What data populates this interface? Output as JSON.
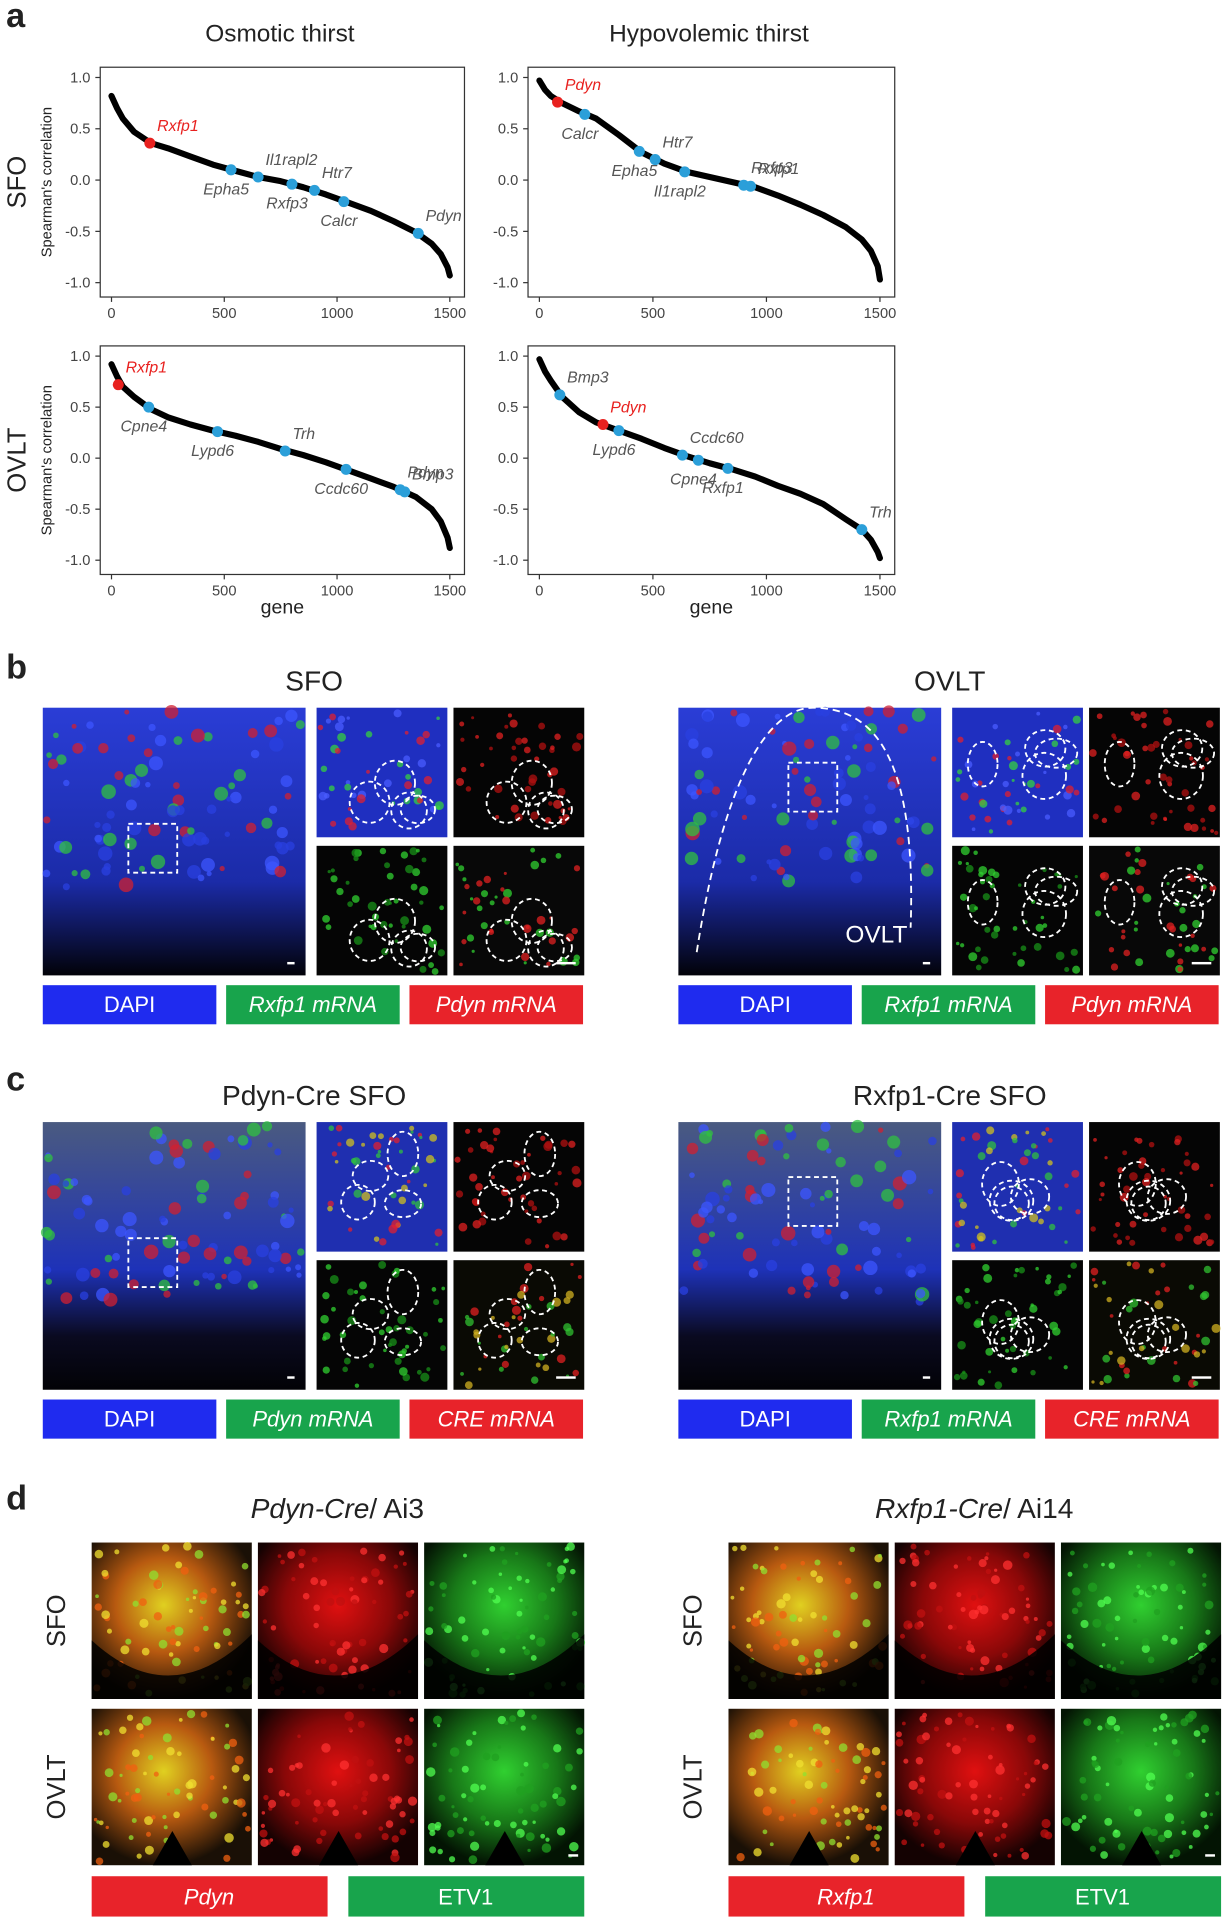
{
  "panel_labels": [
    "a",
    "b",
    "c",
    "d"
  ],
  "chart_data": [
    {
      "type": "line",
      "title": "Osmotic thirst",
      "row_label": "SFO",
      "ylabel": "Spearman's correlation",
      "x": [
        0,
        25,
        50,
        100,
        175,
        250,
        350,
        450,
        550,
        650,
        750,
        850,
        950,
        1050,
        1150,
        1250,
        1350,
        1420,
        1460,
        1490,
        1500
      ],
      "values": [
        0.82,
        0.7,
        0.6,
        0.47,
        0.36,
        0.31,
        0.23,
        0.15,
        0.09,
        0.03,
        -0.01,
        -0.07,
        -0.14,
        -0.22,
        -0.3,
        -0.4,
        -0.51,
        -0.62,
        -0.72,
        -0.85,
        -0.93
      ],
      "color": "#000000",
      "highlights": [
        {
          "label": "Rxfp1",
          "x": 170,
          "y": 0.36,
          "color": "#e8211f"
        },
        {
          "label": "Epha5",
          "x": 530,
          "y": 0.1,
          "color": "#2b9fd9"
        },
        {
          "label": "Il1rapl2",
          "x": 650,
          "y": 0.03,
          "color": "#2b9fd9"
        },
        {
          "label": "Rxfp3",
          "x": 800,
          "y": -0.04,
          "color": "#2b9fd9"
        },
        {
          "label": "Htr7",
          "x": 900,
          "y": -0.1,
          "color": "#2b9fd9"
        },
        {
          "label": "Calcr",
          "x": 1030,
          "y": -0.21,
          "color": "#2b9fd9"
        },
        {
          "label": "Pdyn",
          "x": 1360,
          "y": -0.52,
          "color": "#2b9fd9"
        }
      ],
      "xlim": [
        -50,
        1565
      ],
      "ylim": [
        -1.14,
        1.1
      ],
      "xticks": [
        0,
        500,
        1000,
        1500
      ],
      "yticks": [
        {
          "value": 1,
          "label": "1.0"
        },
        0.5,
        {
          "value": 0,
          "label": "0.0"
        },
        -0.5,
        {
          "value": -1,
          "label": "-1.0"
        }
      ]
    },
    {
      "type": "line",
      "title": "Hypovolemic thirst",
      "x": [
        0,
        25,
        50,
        100,
        175,
        250,
        350,
        450,
        550,
        650,
        750,
        850,
        950,
        1050,
        1150,
        1250,
        1350,
        1420,
        1460,
        1490,
        1500
      ],
      "values": [
        0.97,
        0.88,
        0.82,
        0.75,
        0.67,
        0.6,
        0.44,
        0.27,
        0.16,
        0.08,
        0.03,
        -0.02,
        -0.07,
        -0.15,
        -0.24,
        -0.34,
        -0.46,
        -0.58,
        -0.69,
        -0.84,
        -0.97
      ],
      "color": "#000000",
      "highlights": [
        {
          "label": "Pdyn",
          "x": 80,
          "y": 0.76,
          "color": "#e8211f"
        },
        {
          "label": "Calcr",
          "x": 200,
          "y": 0.64,
          "color": "#2b9fd9"
        },
        {
          "label": "Htr7",
          "x": 510,
          "y": 0.2,
          "color": "#2b9fd9"
        },
        {
          "label": "Epha5",
          "x": 440,
          "y": 0.28,
          "color": "#2b9fd9"
        },
        {
          "label": "Rxfp3",
          "x": 900,
          "y": -0.05,
          "color": "#2b9fd9"
        },
        {
          "label": "Il1rapl2",
          "x": 640,
          "y": 0.08,
          "color": "#2b9fd9"
        },
        {
          "label": "Rxfp1",
          "x": 930,
          "y": -0.06,
          "color": "#2b9fd9"
        }
      ],
      "xlim": [
        -50,
        1565
      ],
      "ylim": [
        -1.14,
        1.1
      ],
      "xticks": [
        0,
        500,
        1000,
        1500
      ],
      "yticks": [
        {
          "value": 1,
          "label": "1.0"
        },
        0.5,
        {
          "value": 0,
          "label": "0.0"
        },
        -0.5,
        {
          "value": -1,
          "label": "-1.0"
        }
      ]
    },
    {
      "type": "line",
      "row_label": "OVLT",
      "ylabel": "Spearman's correlation",
      "xlabel": "gene",
      "x": [
        0,
        25,
        50,
        100,
        175,
        250,
        350,
        450,
        550,
        650,
        750,
        850,
        950,
        1050,
        1150,
        1250,
        1350,
        1420,
        1460,
        1490,
        1500
      ],
      "values": [
        0.92,
        0.8,
        0.7,
        0.6,
        0.48,
        0.4,
        0.33,
        0.27,
        0.22,
        0.16,
        0.09,
        0.03,
        -0.04,
        -0.12,
        -0.2,
        -0.28,
        -0.38,
        -0.5,
        -0.62,
        -0.78,
        -0.88
      ],
      "color": "#000000",
      "highlights": [
        {
          "label": "Rxfp1",
          "x": 30,
          "y": 0.72,
          "color": "#e8211f"
        },
        {
          "label": "Cpne4",
          "x": 165,
          "y": 0.5,
          "color": "#2b9fd9"
        },
        {
          "label": "Trh",
          "x": 770,
          "y": 0.07,
          "color": "#2b9fd9"
        },
        {
          "label": "Lypd6",
          "x": 470,
          "y": 0.26,
          "color": "#2b9fd9"
        },
        {
          "label": "Pdyn",
          "x": 1280,
          "y": -0.31,
          "color": "#2b9fd9"
        },
        {
          "label": "Ccdc60",
          "x": 1040,
          "y": -0.11,
          "color": "#2b9fd9"
        },
        {
          "label": "Bmp3",
          "x": 1300,
          "y": -0.33,
          "color": "#2b9fd9"
        }
      ],
      "xlim": [
        -50,
        1565
      ],
      "ylim": [
        -1.14,
        1.1
      ],
      "xticks": [
        0,
        500,
        1000,
        1500
      ],
      "yticks": [
        {
          "value": 1,
          "label": "1.0"
        },
        0.5,
        {
          "value": 0,
          "label": "0.0"
        },
        -0.5,
        {
          "value": -1,
          "label": "-1.0"
        }
      ]
    },
    {
      "type": "line",
      "xlabel": "gene",
      "x": [
        0,
        25,
        50,
        100,
        175,
        250,
        350,
        450,
        550,
        650,
        750,
        850,
        950,
        1050,
        1150,
        1250,
        1350,
        1420,
        1460,
        1490,
        1500
      ],
      "values": [
        0.97,
        0.85,
        0.76,
        0.6,
        0.45,
        0.35,
        0.27,
        0.19,
        0.1,
        0.02,
        -0.05,
        -0.11,
        -0.18,
        -0.27,
        -0.35,
        -0.45,
        -0.6,
        -0.7,
        -0.8,
        -0.92,
        -0.98
      ],
      "color": "#000000",
      "highlights": [
        {
          "label": "Bmp3",
          "x": 90,
          "y": 0.62,
          "color": "#2b9fd9"
        },
        {
          "label": "Lypd6",
          "x": 350,
          "y": 0.27,
          "color": "#2b9fd9"
        },
        {
          "label": "Pdyn",
          "x": 280,
          "y": 0.33,
          "color": "#e8211f"
        },
        {
          "label": "Cpne4",
          "x": 700,
          "y": -0.02,
          "color": "#2b9fd9"
        },
        {
          "label": "Ccdc60",
          "x": 630,
          "y": 0.03,
          "color": "#2b9fd9"
        },
        {
          "label": "Rxfp1",
          "x": 830,
          "y": -0.1,
          "color": "#2b9fd9"
        },
        {
          "label": "Trh",
          "x": 1420,
          "y": -0.7,
          "color": "#2b9fd9"
        }
      ],
      "xlim": [
        -50,
        1565
      ],
      "ylim": [
        -1.14,
        1.1
      ],
      "xticks": [
        0,
        500,
        1000,
        1500
      ],
      "yticks": [
        {
          "value": 1,
          "label": "1.0"
        },
        0.5,
        {
          "value": 0,
          "label": "0.0"
        },
        -0.5,
        {
          "value": -1,
          "label": "-1.0"
        }
      ]
    }
  ],
  "panel_b": {
    "groups": [
      {
        "title": "SFO",
        "channels": [
          "DAPI",
          "Rxfp1 mRNA",
          "Pdyn mRNA"
        ]
      },
      {
        "title": "OVLT",
        "image_label": "OVLT",
        "channels": [
          "DAPI",
          "Rxfp1 mRNA",
          "Pdyn mRNA"
        ]
      }
    ]
  },
  "panel_c": {
    "groups": [
      {
        "title": "Pdyn-Cre SFO",
        "channels": [
          "DAPI",
          "Pdyn mRNA",
          "CRE mRNA"
        ]
      },
      {
        "title": "Rxfp1-Cre SFO",
        "channels": [
          "DAPI",
          "Rxfp1 mRNA",
          "CRE mRNA"
        ]
      }
    ]
  },
  "panel_d": {
    "groups": [
      {
        "title_line": "Pdyn-Cre",
        "title_reporter": "/ Ai3",
        "rows": [
          "SFO",
          "OVLT"
        ],
        "channels": [
          "Pdyn",
          "ETV1"
        ]
      },
      {
        "title_line": "Rxfp1-Cre",
        "title_reporter": "/ Ai14",
        "rows": [
          "SFO",
          "OVLT"
        ],
        "channels": [
          "Rxfp1",
          "ETV1"
        ]
      }
    ]
  }
}
